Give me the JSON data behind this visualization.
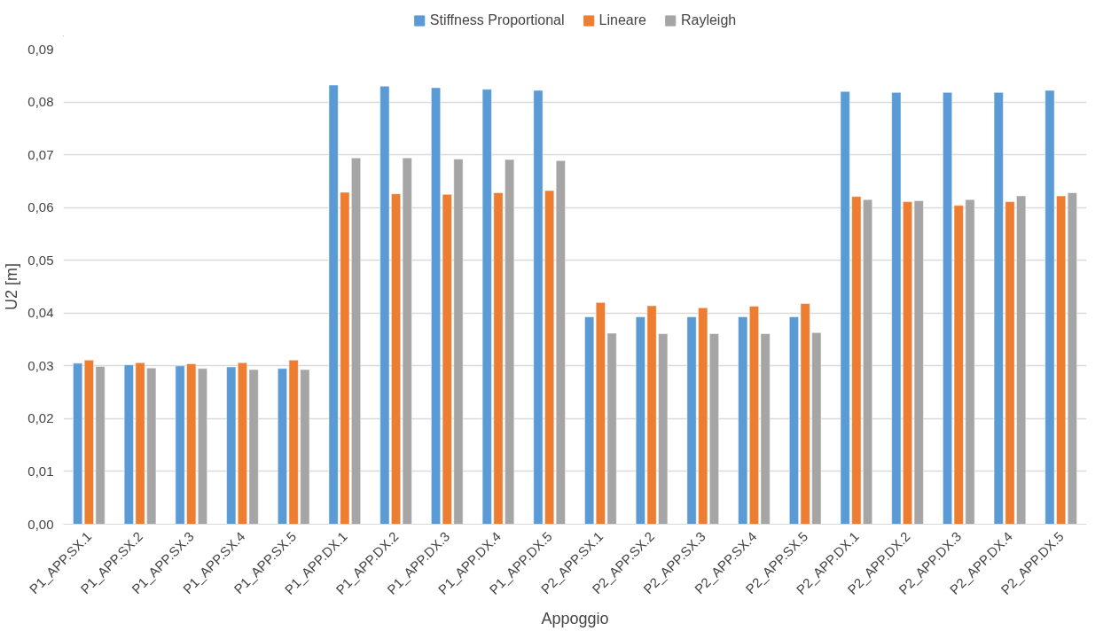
{
  "chart_data": {
    "type": "bar",
    "xlabel": "Appoggio",
    "ylabel": "U2 [m]",
    "categories": [
      "P1_APP.SX.1",
      "P1_APP.SX.2",
      "P1_APP.SX.3",
      "P1_APP.SX.4",
      "P1_APP.SX.5",
      "P1_APP.DX.1",
      "P1_APP.DX.2",
      "P1_APP.DX.3",
      "P1_APP.DX.4",
      "P1_APP.DX.5",
      "P2_APP.SX.1",
      "P2_APP.SX.2",
      "P2_APP.SX.3",
      "P2_APP.SX.4",
      "P2_APP.SX.5",
      "P2_APP.DX.1",
      "P2_APP.DX.2",
      "P2_APP.DX.3",
      "P2_APP.DX.4",
      "P2_APP.DX.5"
    ],
    "series": [
      {
        "name": "Stiffness Proportional",
        "color": "#5b9bd5",
        "values": [
          0.0305,
          0.0302,
          0.03,
          0.0298,
          0.0295,
          0.0832,
          0.083,
          0.0827,
          0.0824,
          0.0822,
          0.0393,
          0.0393,
          0.0393,
          0.0393,
          0.0393,
          0.082,
          0.0818,
          0.0818,
          0.0818,
          0.0822
        ]
      },
      {
        "name": "Lineare",
        "color": "#ed7d31",
        "values": [
          0.0311,
          0.0306,
          0.0304,
          0.0306,
          0.0311,
          0.0629,
          0.0626,
          0.0625,
          0.0628,
          0.0632,
          0.042,
          0.0414,
          0.041,
          0.0413,
          0.0418,
          0.0621,
          0.0611,
          0.0604,
          0.0611,
          0.0622
        ]
      },
      {
        "name": "Rayleigh",
        "color": "#a5a5a5",
        "values": [
          0.0299,
          0.0296,
          0.0295,
          0.0293,
          0.0293,
          0.0694,
          0.0694,
          0.0692,
          0.0691,
          0.0689,
          0.0362,
          0.0361,
          0.0361,
          0.0361,
          0.0363,
          0.0615,
          0.0613,
          0.0615,
          0.0622,
          0.0628
        ]
      }
    ],
    "ylim": [
      0,
      0.09
    ],
    "yticks": [
      {
        "value": 0,
        "label": "0,00"
      },
      {
        "value": 0.01,
        "label": "0,01"
      },
      {
        "value": 0.02,
        "label": "0,02"
      },
      {
        "value": 0.03,
        "label": "0,03"
      },
      {
        "value": 0.04,
        "label": "0,04"
      },
      {
        "value": 0.05,
        "label": "0,05"
      },
      {
        "value": 0.06,
        "label": "0,06"
      },
      {
        "value": 0.07,
        "label": "0,07"
      },
      {
        "value": 0.08,
        "label": "0,08"
      },
      {
        "value": 0.09,
        "label": "0,09"
      }
    ],
    "grid": "y",
    "legend": "top"
  }
}
